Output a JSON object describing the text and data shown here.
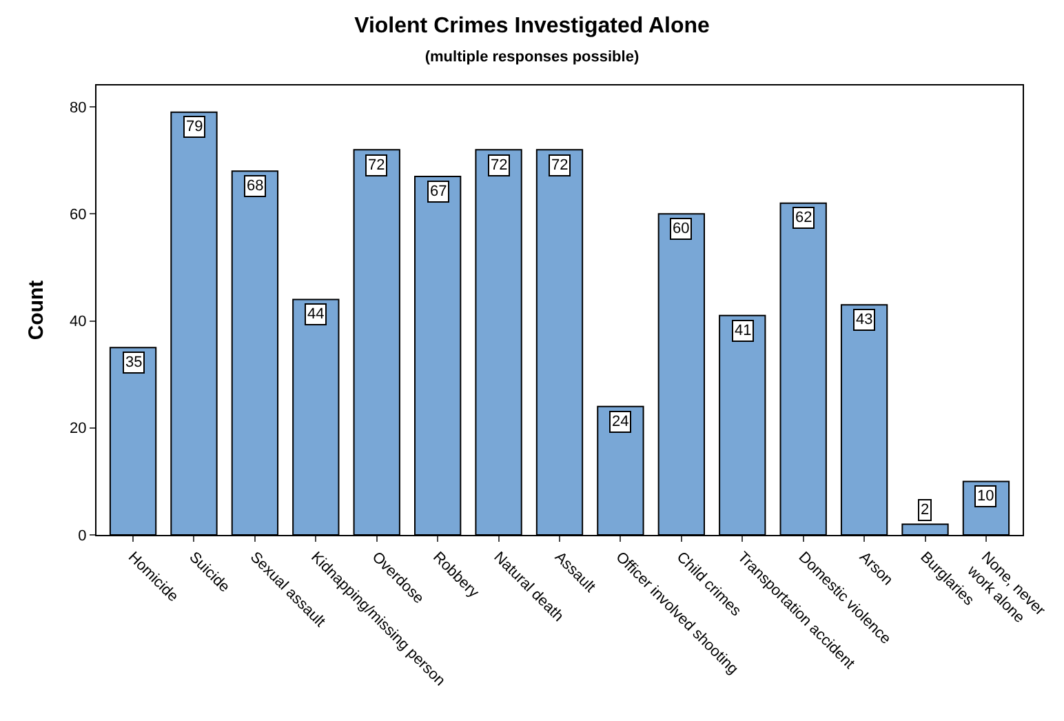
{
  "chart_data": {
    "type": "bar",
    "title": "Violent Crimes Investigated Alone",
    "subtitle": "(multiple responses possible)",
    "ylabel": "Count",
    "categories": [
      "Homicide",
      "Suicide",
      "Sexual assault",
      "Kidnapping/missing person",
      "Overdose",
      "Robbery",
      "Natural death",
      "Assault",
      "Officer involved shooting",
      "Child crimes",
      "Transportation accident",
      "Domestic violence",
      "Arson",
      "Burglaries",
      "None, never\nwork alone"
    ],
    "values": [
      35,
      79,
      68,
      44,
      72,
      67,
      72,
      72,
      24,
      60,
      41,
      62,
      43,
      2,
      10
    ],
    "color": "#79a7d6",
    "ylim": [
      0,
      84
    ],
    "yticks": [
      0,
      20,
      40,
      60,
      80
    ],
    "data_labels": true,
    "legend": false
  }
}
